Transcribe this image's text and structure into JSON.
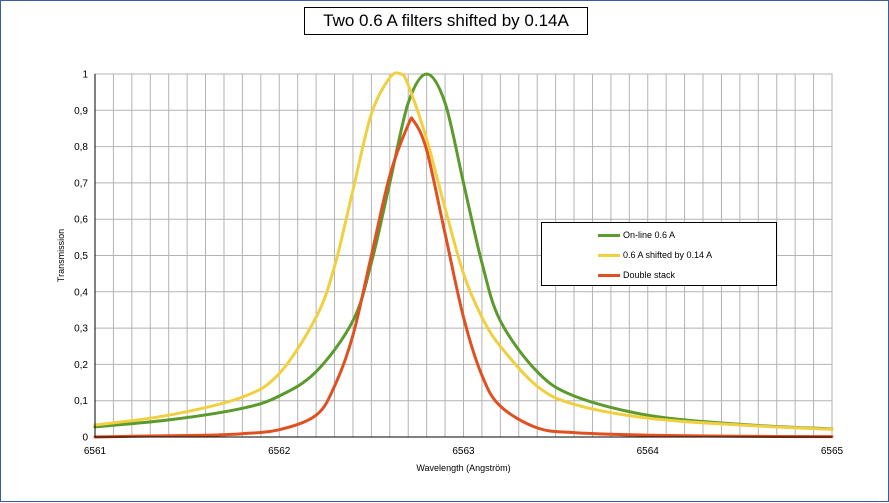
{
  "chart_data": {
    "type": "line",
    "title": "Two 0.6 A filters shifted by 0.14A",
    "xlabel": "Wavelength (Angström)",
    "ylabel": "Transmission",
    "xlim": [
      6561,
      6565
    ],
    "ylim": [
      0,
      1
    ],
    "x_ticks": [
      "6561",
      "6562",
      "6563",
      "6564",
      "6565"
    ],
    "y_ticks": [
      "0",
      "0,1",
      "0,2",
      "0,3",
      "0,4",
      "0,5",
      "0,6",
      "0,7",
      "0,8",
      "0,9",
      "1"
    ],
    "grid": true,
    "legend_position": "right",
    "series": [
      {
        "name": "On-line 0.6 A",
        "color": "#5b9a2c",
        "x": [
          6561,
          6561.4,
          6561.8,
          6562.0,
          6562.2,
          6562.4,
          6562.5,
          6562.6,
          6562.7,
          6562.8,
          6562.9,
          6563.0,
          6563.1,
          6563.2,
          6563.4,
          6563.6,
          6564.0,
          6564.5,
          6565
        ],
        "y": [
          0.028,
          0.047,
          0.079,
          0.113,
          0.18,
          0.32,
          0.48,
          0.7,
          0.92,
          1.0,
          0.92,
          0.7,
          0.48,
          0.32,
          0.18,
          0.113,
          0.06,
          0.035,
          0.022
        ]
      },
      {
        "name": "0.6 A shifted by 0.14 A",
        "color": "#f0d040",
        "x": [
          6561,
          6561.4,
          6561.8,
          6562.0,
          6562.2,
          6562.3,
          6562.4,
          6562.5,
          6562.6,
          6562.66,
          6562.7,
          6562.8,
          6562.9,
          6563.0,
          6563.1,
          6563.2,
          6563.4,
          6563.6,
          6564.0,
          6564.5,
          6565
        ],
        "y": [
          0.033,
          0.06,
          0.11,
          0.175,
          0.33,
          0.47,
          0.68,
          0.89,
          0.99,
          1.0,
          0.97,
          0.82,
          0.63,
          0.45,
          0.33,
          0.25,
          0.14,
          0.09,
          0.052,
          0.033,
          0.021
        ]
      },
      {
        "name": "Double stack",
        "color": "#e05020",
        "x": [
          6561,
          6561.2,
          6561.6,
          6561.8,
          6562.0,
          6562.2,
          6562.3,
          6562.4,
          6562.5,
          6562.6,
          6562.7,
          6562.73,
          6562.8,
          6562.9,
          6563.0,
          6563.1,
          6563.2,
          6563.4,
          6563.6,
          6564.0,
          6564.5,
          6565
        ],
        "y": [
          0.0,
          0.002,
          0.005,
          0.009,
          0.02,
          0.06,
          0.14,
          0.28,
          0.5,
          0.72,
          0.86,
          0.87,
          0.79,
          0.56,
          0.33,
          0.17,
          0.085,
          0.025,
          0.012,
          0.005,
          0.002,
          0.001
        ]
      }
    ]
  }
}
